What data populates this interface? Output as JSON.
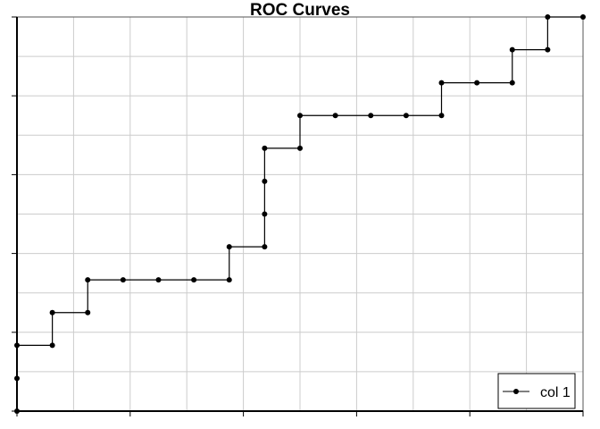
{
  "chart_data": {
    "type": "line",
    "title": "ROC Curves",
    "xlabel": "",
    "ylabel": "",
    "xlim": [
      0,
      1
    ],
    "ylim": [
      0,
      1
    ],
    "grid": true,
    "legend_position": "bottom-right",
    "step_style": "vertical-then-horizontal",
    "series": [
      {
        "name": "col 1",
        "color": "#000000",
        "x": [
          0,
          0,
          0,
          0.0625,
          0.0625,
          0.125,
          0.125,
          0.1875,
          0.25,
          0.3125,
          0.375,
          0.375,
          0.4375,
          0.4375,
          0.4375,
          0.4375,
          0.5,
          0.5,
          0.5625,
          0.625,
          0.6875,
          0.75,
          0.75,
          0.8125,
          0.875,
          0.875,
          0.9375,
          0.9375,
          1.0
        ],
        "y": [
          0,
          0.083,
          0.167,
          0.167,
          0.25,
          0.25,
          0.333,
          0.333,
          0.333,
          0.333,
          0.333,
          0.417,
          0.417,
          0.5,
          0.583,
          0.667,
          0.667,
          0.75,
          0.75,
          0.75,
          0.75,
          0.75,
          0.833,
          0.833,
          0.833,
          0.917,
          0.917,
          1.0,
          1.0
        ]
      }
    ]
  }
}
